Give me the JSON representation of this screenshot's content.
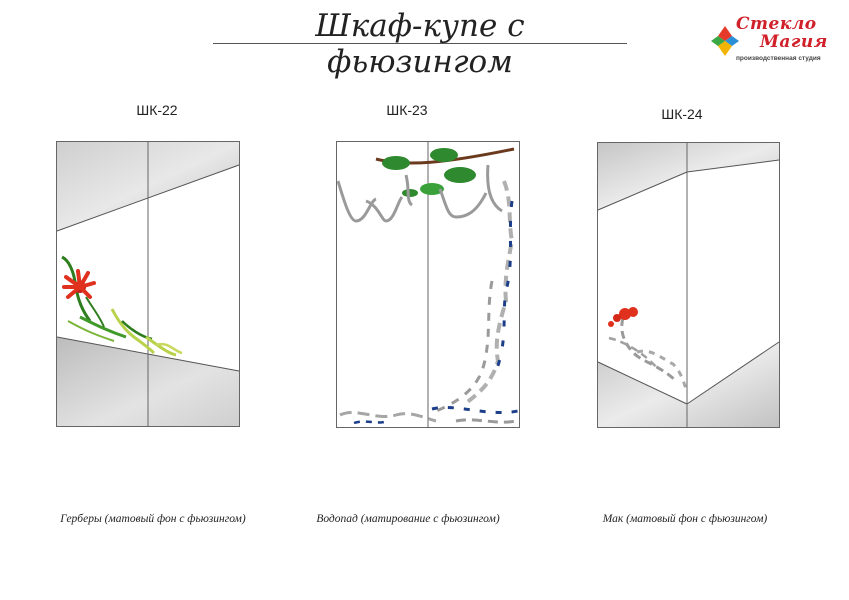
{
  "header": {
    "title": "Шкаф-купе с фьюзингом",
    "logo_line1": "Стекло",
    "logo_line2": "Магия",
    "logo_tagline": "производственная студия"
  },
  "products": [
    {
      "code": "ШК-22",
      "caption": "Герберы (матовый фон с фьюзингом)",
      "motif": "gerbera-icon"
    },
    {
      "code": "ШК-23",
      "caption": "Водопад (матирование с фьюзингом)",
      "motif": "waterfall-icon"
    },
    {
      "code": "ШК-24",
      "caption": "Мак (матовый фон с фьюзингом)",
      "motif": "poppy-icon"
    }
  ],
  "colors": {
    "frost": "#c9c9c9",
    "mirror_light": "#f4f4f4",
    "flower_red": "#e0301e",
    "leaf_green": "#3f9a2a",
    "leaf_yellow": "#b8d24a",
    "water_blue": "#1d3f8a",
    "logo_red": "#d0202a"
  }
}
